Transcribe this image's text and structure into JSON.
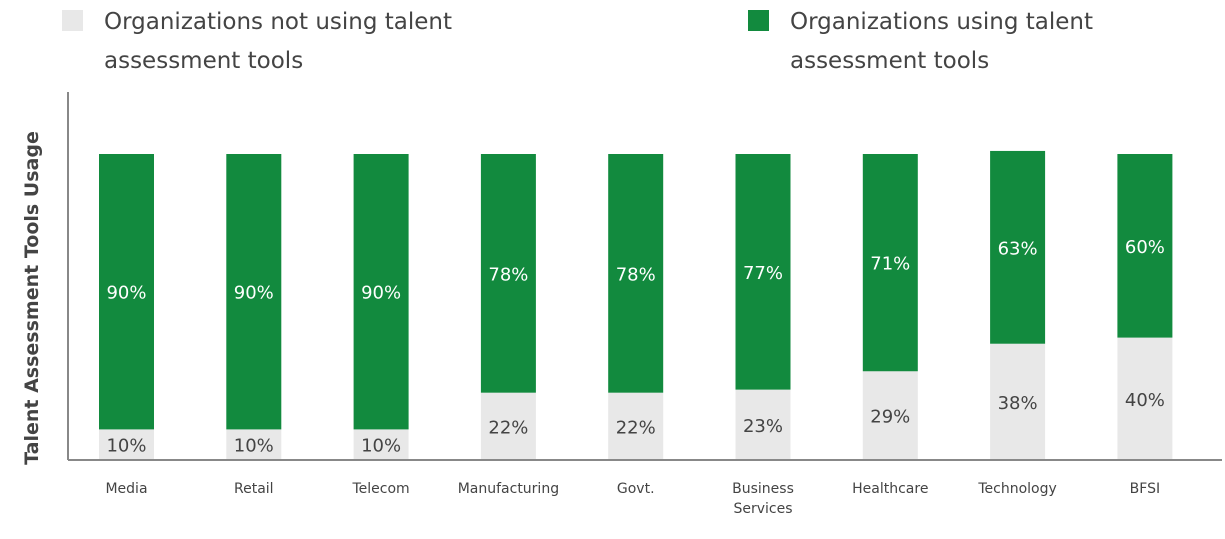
{
  "colors": {
    "using": "#128a3e",
    "not_using": "#e8e8e8",
    "axis": "#888888",
    "label_on_dark": "#ffffff",
    "label_on_light": "#444444"
  },
  "legend": {
    "not_using": {
      "line1": "Organizations not using talent",
      "line2": "assessment tools"
    },
    "using": {
      "line1": "Organizations using talent",
      "line2": "assessment tools"
    }
  },
  "chart_data": {
    "type": "bar",
    "stacked": true,
    "ylabel": "Talent Assessment Tools Usage",
    "xlabel": "",
    "ylim": [
      0,
      100
    ],
    "grid": false,
    "legend_position": "top",
    "categories": [
      [
        "Media"
      ],
      [
        "Retail"
      ],
      [
        "Telecom"
      ],
      [
        "Manufacturing"
      ],
      [
        "Govt."
      ],
      [
        "Business",
        "Services"
      ],
      [
        "Healthcare"
      ],
      [
        "Technology"
      ],
      [
        "BFSI"
      ]
    ],
    "series": [
      {
        "key": "not_using",
        "name": "Organizations not using talent assessment tools",
        "values": [
          10,
          10,
          10,
          22,
          22,
          23,
          29,
          38,
          40
        ],
        "labels": [
          "10%",
          "10%",
          "10%",
          "22%",
          "22%",
          "23%",
          "29%",
          "38%",
          "40%"
        ]
      },
      {
        "key": "using",
        "name": "Organizations using talent assessment tools",
        "values": [
          90,
          90,
          90,
          78,
          78,
          77,
          71,
          63,
          60
        ],
        "labels": [
          "90%",
          "90%",
          "90%",
          "78%",
          "78%",
          "77%",
          "71%",
          "63%",
          "60%"
        ]
      }
    ]
  }
}
